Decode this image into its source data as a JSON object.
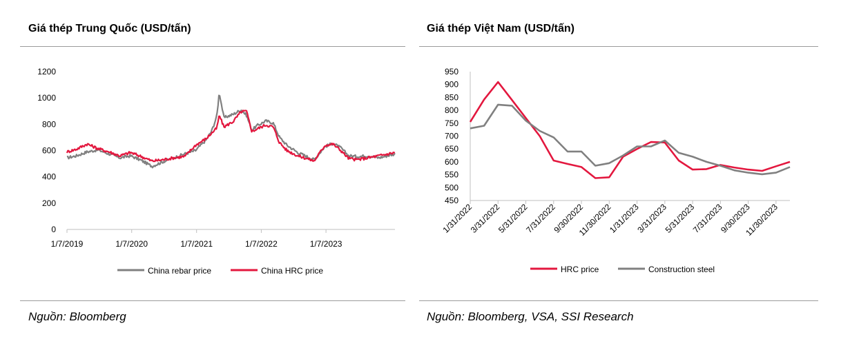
{
  "left_panel": {
    "title": "Giá thép Trung  Quốc (USD/tấn)",
    "source": "Nguồn: Bloomberg"
  },
  "right_panel": {
    "title": "Giá thép Việt Nam (USD/tấn)",
    "source": "Nguồn: Bloomberg, VSA, SSI Research"
  },
  "colors": {
    "gray": "#808080",
    "red": "#e3173e",
    "axis": "#bfbfbf"
  },
  "chart_data": [
    {
      "type": "line",
      "title": "Giá thép Trung  Quốc (USD/tấn)",
      "xlabel": "",
      "ylabel": "",
      "ylim": [
        0,
        1200
      ],
      "yticks": [
        0,
        200,
        400,
        600,
        800,
        1000,
        1200
      ],
      "xlim": [
        "2019-01-07",
        "2024-01-31"
      ],
      "xtick_labels": [
        "1/7/2019",
        "1/7/2020",
        "1/7/2021",
        "1/7/2022",
        "1/7/2023"
      ],
      "xtick_dates": [
        "2019-01-07",
        "2020-01-07",
        "2021-01-07",
        "2022-01-07",
        "2023-01-07"
      ],
      "legend": "bottom",
      "series": [
        {
          "name": "China rebar price",
          "color": "#808080",
          "points": [
            [
              "2019-01-07",
              545
            ],
            [
              "2019-03-01",
              560
            ],
            [
              "2019-05-01",
              590
            ],
            [
              "2019-07-01",
              605
            ],
            [
              "2019-09-01",
              575
            ],
            [
              "2019-11-01",
              545
            ],
            [
              "2020-01-01",
              560
            ],
            [
              "2020-03-01",
              525
            ],
            [
              "2020-05-01",
              480
            ],
            [
              "2020-07-01",
              515
            ],
            [
              "2020-09-01",
              545
            ],
            [
              "2020-11-01",
              575
            ],
            [
              "2021-01-01",
              600
            ],
            [
              "2021-03-01",
              680
            ],
            [
              "2021-04-01",
              745
            ],
            [
              "2021-05-01",
              860
            ],
            [
              "2021-05-15",
              1045
            ],
            [
              "2021-06-10",
              850
            ],
            [
              "2021-08-01",
              875
            ],
            [
              "2021-09-15",
              910
            ],
            [
              "2021-10-15",
              870
            ],
            [
              "2021-11-15",
              755
            ],
            [
              "2021-12-15",
              790
            ],
            [
              "2022-02-01",
              825
            ],
            [
              "2022-03-15",
              810
            ],
            [
              "2022-04-20",
              700
            ],
            [
              "2022-06-01",
              640
            ],
            [
              "2022-08-01",
              585
            ],
            [
              "2022-09-20",
              555
            ],
            [
              "2022-11-01",
              530
            ],
            [
              "2023-01-01",
              630
            ],
            [
              "2023-02-15",
              655
            ],
            [
              "2023-04-01",
              620
            ],
            [
              "2023-05-15",
              560
            ],
            [
              "2023-07-01",
              555
            ],
            [
              "2023-09-01",
              560
            ],
            [
              "2023-11-01",
              545
            ],
            [
              "2024-01-31",
              575
            ]
          ]
        },
        {
          "name": "China HRC price",
          "color": "#e3173e",
          "points": [
            [
              "2019-01-07",
              590
            ],
            [
              "2019-03-01",
              610
            ],
            [
              "2019-05-01",
              650
            ],
            [
              "2019-07-01",
              615
            ],
            [
              "2019-09-01",
              590
            ],
            [
              "2019-11-01",
              560
            ],
            [
              "2020-01-01",
              585
            ],
            [
              "2020-03-01",
              555
            ],
            [
              "2020-05-01",
              520
            ],
            [
              "2020-07-01",
              530
            ],
            [
              "2020-09-01",
              545
            ],
            [
              "2020-11-01",
              555
            ],
            [
              "2021-01-01",
              640
            ],
            [
              "2021-03-01",
              690
            ],
            [
              "2021-05-01",
              770
            ],
            [
              "2021-05-15",
              870
            ],
            [
              "2021-06-10",
              780
            ],
            [
              "2021-08-01",
              820
            ],
            [
              "2021-09-15",
              895
            ],
            [
              "2021-10-15",
              900
            ],
            [
              "2021-11-15",
              745
            ],
            [
              "2021-12-15",
              765
            ],
            [
              "2022-02-01",
              795
            ],
            [
              "2022-03-15",
              780
            ],
            [
              "2022-04-20",
              660
            ],
            [
              "2022-06-01",
              600
            ],
            [
              "2022-08-01",
              560
            ],
            [
              "2022-09-20",
              540
            ],
            [
              "2022-11-01",
              520
            ],
            [
              "2023-01-01",
              640
            ],
            [
              "2023-02-15",
              650
            ],
            [
              "2023-04-01",
              600
            ],
            [
              "2023-05-15",
              540
            ],
            [
              "2023-07-01",
              530
            ],
            [
              "2023-09-01",
              545
            ],
            [
              "2023-11-01",
              560
            ],
            [
              "2024-01-31",
              585
            ]
          ]
        }
      ]
    },
    {
      "type": "line",
      "title": "Giá thép Việt Nam (USD/tấn)",
      "xlabel": "",
      "ylabel": "",
      "ylim": [
        450,
        950
      ],
      "yticks": [
        450,
        500,
        550,
        600,
        650,
        700,
        750,
        800,
        850,
        900,
        950
      ],
      "categories": [
        "1/31/2022",
        "2/28/2022",
        "3/31/2022",
        "4/30/2022",
        "5/31/2022",
        "6/30/2022",
        "7/31/2022",
        "8/31/2022",
        "9/30/2022",
        "10/31/2022",
        "11/30/2022",
        "12/31/2022",
        "1/31/2023",
        "2/28/2023",
        "3/31/2023",
        "4/30/2023",
        "5/31/2023",
        "6/30/2023",
        "7/31/2023",
        "8/31/2023",
        "9/30/2023",
        "10/31/2023",
        "11/30/2023",
        "12/31/2023"
      ],
      "xtick_labels": [
        "1/31/2022",
        "3/31/2022",
        "5/31/2022",
        "7/31/2022",
        "9/30/2022",
        "11/30/2022",
        "1/31/2023",
        "3/31/2023",
        "5/31/2023",
        "7/31/2023",
        "9/30/2023",
        "11/30/2023"
      ],
      "legend": "bottom",
      "series": [
        {
          "name": "HRC price",
          "color": "#e3173e",
          "values": [
            755,
            842,
            910,
            840,
            770,
            700,
            605,
            592,
            580,
            537,
            540,
            620,
            650,
            677,
            675,
            605,
            570,
            572,
            588,
            578,
            570,
            565,
            583,
            600
          ]
        },
        {
          "name": "Construction steel",
          "color": "#808080",
          "values": [
            730,
            740,
            822,
            818,
            760,
            720,
            695,
            640,
            640,
            585,
            595,
            625,
            660,
            660,
            683,
            635,
            620,
            600,
            585,
            567,
            558,
            552,
            558,
            580
          ]
        }
      ]
    }
  ]
}
